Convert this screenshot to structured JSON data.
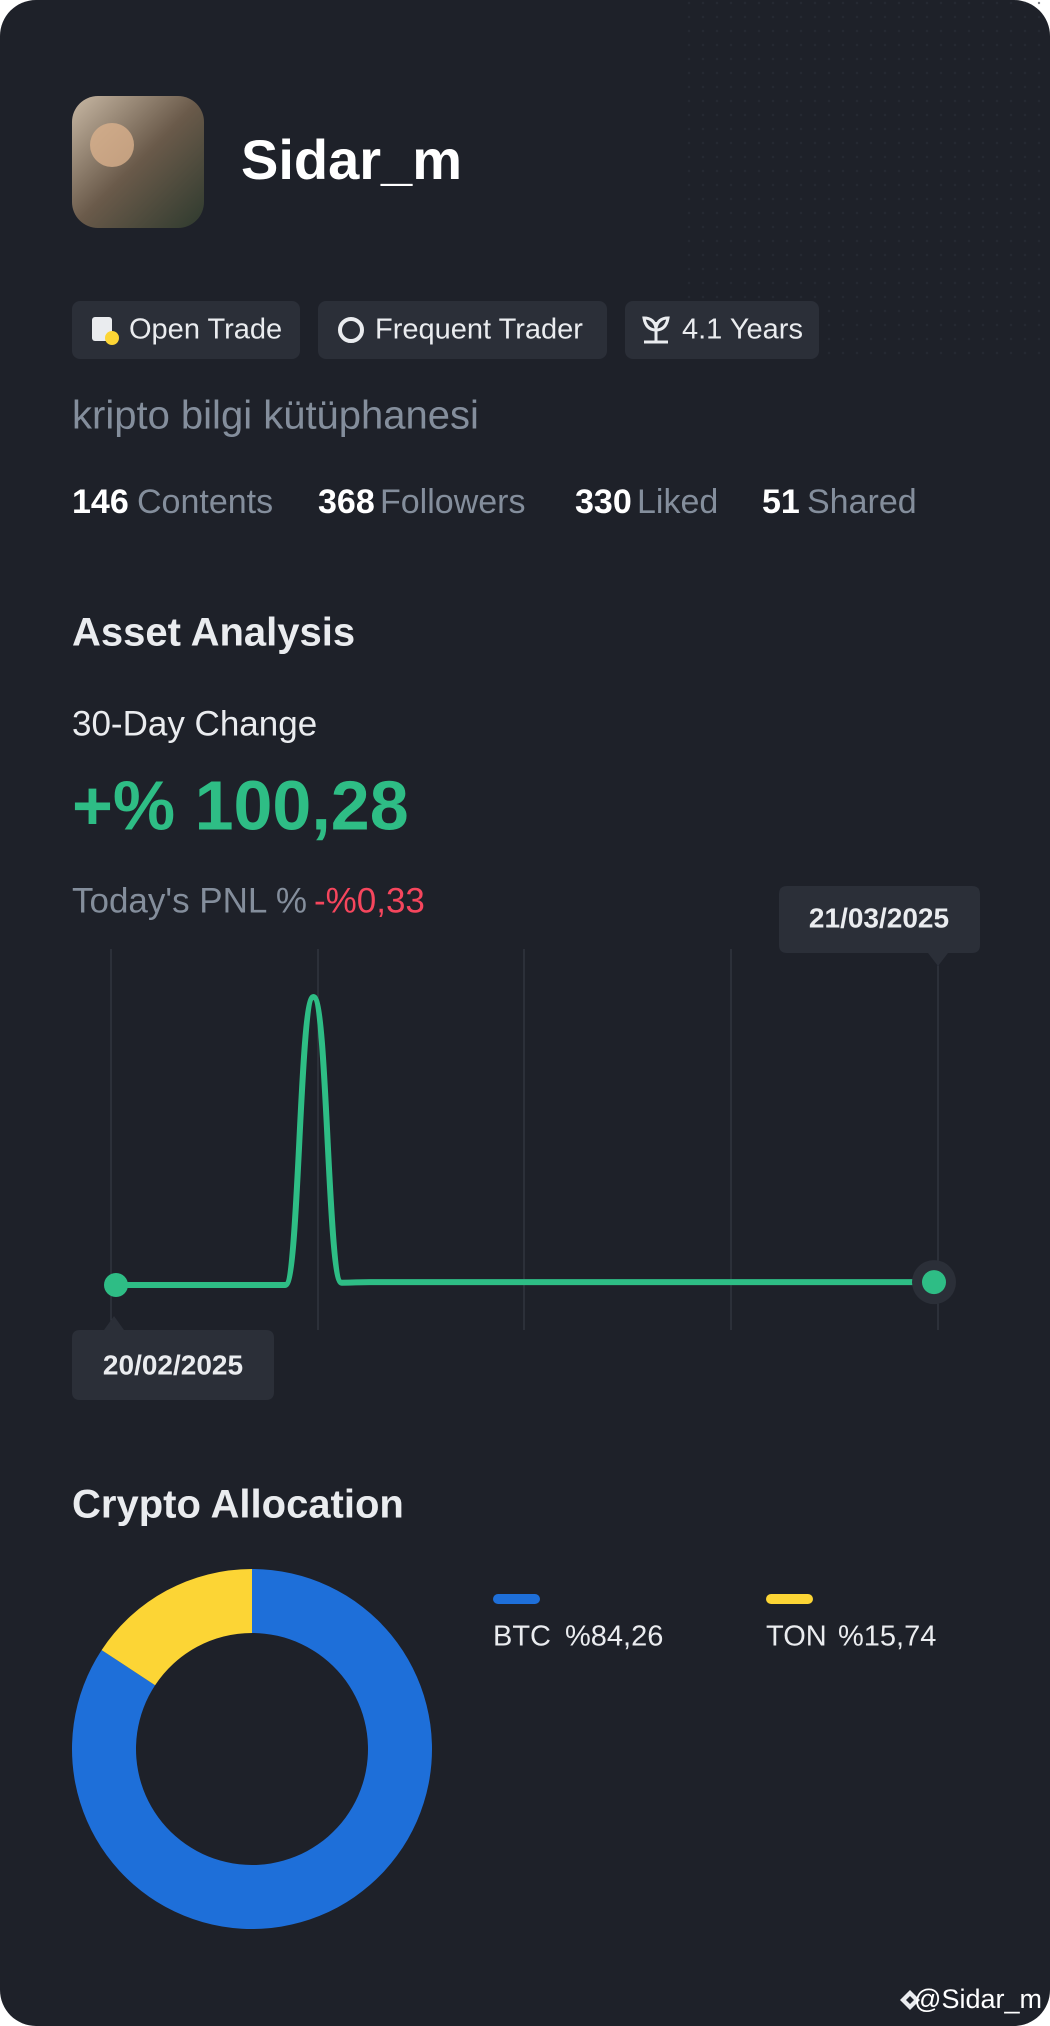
{
  "profile": {
    "name": "Sidar_m",
    "badges": [
      "Open Trade",
      "Frequent Trader",
      "4.1 Years"
    ],
    "bio": "kripto bilgi kütüphanesi",
    "stats": [
      {
        "value": 146,
        "label": "Contents"
      },
      {
        "value": 368,
        "label": "Followers"
      },
      {
        "value": 330,
        "label": "Liked"
      },
      {
        "value": 51,
        "label": "Shared"
      }
    ]
  },
  "asset_analysis": {
    "title": "Asset Analysis",
    "change_label": "30-Day Change",
    "change_value": "+% 100,28",
    "pnl_label": "Today's PNL %",
    "pnl_value": "-%0,33"
  },
  "chart_data": [
    {
      "type": "line",
      "color": "#2ebd85",
      "categories": [
        "20/02/2025",
        null,
        null,
        null,
        null,
        null,
        null,
        null,
        null,
        null,
        null,
        null,
        null,
        null,
        null,
        null,
        null,
        null,
        null,
        null,
        null,
        null,
        null,
        null,
        null,
        null,
        null,
        null,
        null,
        "21/03/2025"
      ],
      "values": [
        0,
        0,
        0,
        0,
        0,
        0,
        0,
        100,
        0.8,
        1,
        1,
        1,
        1,
        1,
        1,
        1,
        1,
        1,
        1,
        1,
        1,
        1,
        1,
        1,
        1,
        1,
        1,
        1,
        1,
        1
      ]
    },
    {
      "type": "pie",
      "title": "Crypto Allocation",
      "donut": true,
      "categories": [
        "BTC",
        "TON"
      ],
      "values": [
        84.26,
        15.74
      ],
      "value_labels": [
        "%84,26",
        "%15,74"
      ],
      "colors": [
        "#1e6fd9",
        "#fcd535"
      ]
    }
  ],
  "watermark": "@Sidar_m"
}
